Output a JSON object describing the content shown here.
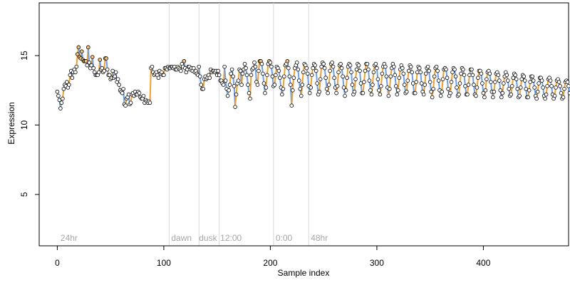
{
  "chart_data": {
    "type": "scatter",
    "title": "",
    "xlabel": "Sample index",
    "ylabel": "Expression",
    "xlim": [
      -17,
      480
    ],
    "ylim": [
      1.3,
      18.8
    ],
    "x_ticks": [
      0,
      100,
      200,
      300,
      400
    ],
    "y_ticks": [
      5,
      10,
      15
    ],
    "grid": false,
    "legend": "none",
    "colors": {
      "point_fill": "#ffffff",
      "point_fill_high": "#f3c27b",
      "point_stroke": "#000000",
      "trace_gray": "#a6a6a6",
      "trace_up": "#f0a030",
      "trace_down": "#6f9fe6",
      "divider": "#d9d9d9",
      "phase_label": "#a6a6a6"
    },
    "dividers": [
      105,
      133,
      152,
      203,
      236
    ],
    "phase_labels": [
      {
        "text": "24hr",
        "x": 3
      },
      {
        "text": "dawn",
        "x": 107
      },
      {
        "text": "dusk",
        "x": 133
      },
      {
        "text": "12:00",
        "x": 153
      },
      {
        "text": "0:00",
        "x": 205
      },
      {
        "text": "48hr",
        "x": 238
      }
    ],
    "series": [
      {
        "values": [
          12.4,
          12.1,
          11.8,
          11.2,
          11.6,
          11.9,
          12.6,
          12.9,
          12.8,
          13.1,
          12.7,
          12.9,
          13.6,
          13.9,
          13.4,
          13.8,
          14.0,
          13.8,
          14.2,
          15.1,
          15.6,
          14.9,
          14.8,
          15.3,
          14.7,
          14.6,
          14.6,
          14.6,
          14.3,
          15.6,
          14.5,
          14.1,
          14.3,
          14.9,
          14.1,
          13.8,
          13.6,
          13.6,
          13.6,
          13.8,
          14.7,
          14.0,
          14.1,
          13.8,
          13.9,
          14.8,
          14.8,
          14.0,
          13.6,
          13.6,
          13.3,
          13.4,
          13.9,
          13.4,
          13.5,
          13.8,
          13.1,
          13.3,
          12.9,
          12.5,
          12.4,
          12.3,
          12.6,
          11.5,
          11.4,
          11.9,
          12.0,
          12.2,
          11.5,
          11.6,
          12.2,
          12.3,
          12.1,
          12.4,
          12.2,
          12.2,
          12.4,
          12.3,
          12.0,
          11.9,
          11.9,
          12.1,
          11.6,
          11.8,
          11.7,
          11.6,
          11.7,
          11.6,
          14.1,
          14.2,
          13.8,
          13.6,
          13.7,
          13.8,
          13.6,
          13.4,
          13.9,
          13.7,
          13.8,
          13.6,
          13.6,
          14.1,
          14.1,
          14.0,
          14.2,
          14.1,
          14.1,
          14.2,
          14.2,
          14.1,
          14.2,
          14.0,
          14.0,
          14.2,
          14.1,
          14.0,
          13.9,
          14.4,
          14.2,
          14.6,
          14.1,
          13.8,
          14.0,
          14.2,
          14.2,
          14.0,
          14.1,
          13.9,
          14.1,
          13.8,
          13.9,
          13.7,
          13.6,
          14.2,
          13.5,
          12.9,
          12.6,
          12.6,
          13.3,
          13.5,
          13.3,
          13.4,
          13.6,
          13.4,
          14.0,
          13.8,
          13.9,
          13.9,
          13.8,
          13.9,
          13.6,
          13.9,
          13.6,
          13.2,
          13.2,
          13.0,
          12.9,
          14.2,
          13.2,
          12.6,
          12.1,
          12.5,
          12.9,
          13.7,
          14.0,
          13.5,
          12.8,
          11.3,
          12.2,
          13.0,
          13.2,
          14.0,
          13.9,
          12.9,
          13.7,
          14.0,
          14.4,
          14.1,
          13.6,
          12.9,
          12.3,
          11.9,
          13.6,
          14.0,
          14.1,
          14.5,
          14.2,
          13.1,
          12.9,
          13.9,
          14.6,
          14.6,
          14.4,
          13.7,
          13.0,
          12.3,
          12.7,
          13.6,
          14.4,
          14.6,
          14.5,
          14.2,
          13.5,
          12.8,
          12.9,
          13.6,
          14.2,
          14.1,
          13.9,
          13.4,
          12.7,
          12.2,
          12.6,
          13.5,
          14.3,
          14.4,
          14.6,
          14.1,
          13.5,
          12.9,
          11.4,
          12.5,
          13.4,
          14.1,
          14.3,
          14.5,
          14.0,
          13.2,
          12.6,
          12.1,
          12.9,
          13.8,
          14.4,
          14.3,
          14.1,
          13.7,
          12.8,
          12.3,
          12.7,
          13.6,
          14.1,
          14.4,
          14.3,
          13.9,
          13.0,
          12.2,
          12.4,
          13.3,
          14.2,
          14.5,
          14.4,
          14.1,
          13.4,
          12.6,
          12.3,
          12.9,
          13.9,
          14.4,
          14.5,
          14.2,
          13.4,
          12.7,
          12.3,
          12.8,
          13.8,
          14.3,
          14.4,
          14.1,
          13.5,
          12.7,
          12.1,
          12.5,
          13.4,
          14.2,
          14.4,
          14.3,
          13.8,
          12.9,
          12.2,
          12.4,
          13.3,
          14.0,
          14.4,
          14.3,
          13.9,
          13.0,
          12.3,
          12.3,
          13.1,
          13.9,
          14.4,
          14.4,
          14.0,
          13.2,
          12.5,
          12.2,
          12.9,
          13.8,
          14.3,
          14.4,
          14.1,
          13.3,
          12.5,
          12.2,
          12.8,
          13.7,
          14.2,
          14.4,
          14.2,
          13.5,
          12.7,
          12.1,
          12.6,
          13.5,
          14.1,
          14.4,
          14.2,
          13.6,
          12.8,
          12.2,
          12.5,
          13.4,
          14.0,
          14.3,
          14.1,
          13.7,
          12.9,
          12.3,
          12.4,
          13.2,
          13.9,
          14.3,
          14.2,
          13.8,
          13.0,
          12.3,
          12.3,
          13.1,
          13.8,
          14.2,
          14.1,
          13.8,
          13.0,
          12.4,
          12.2,
          12.9,
          13.7,
          14.1,
          14.2,
          13.9,
          13.1,
          12.4,
          12.0,
          12.6,
          13.5,
          14.1,
          14.2,
          13.9,
          13.2,
          12.5,
          12.1,
          12.4,
          13.3,
          14.0,
          14.1,
          14.0,
          13.4,
          12.6,
          12.1,
          12.3,
          13.1,
          13.8,
          14.1,
          14.0,
          13.5,
          12.7,
          12.1,
          12.2,
          13.0,
          13.7,
          14.1,
          14.0,
          13.6,
          12.8,
          12.2,
          12.2,
          12.9,
          13.6,
          14.0,
          14.0,
          13.6,
          12.9,
          12.2,
          12.1,
          12.7,
          13.4,
          13.9,
          13.9,
          13.7,
          13.0,
          12.3,
          12.0,
          12.5,
          13.3,
          13.8,
          13.9,
          13.7,
          13.1,
          12.4,
          12.0,
          12.4,
          13.1,
          13.7,
          13.8,
          13.6,
          13.2,
          12.5,
          12.0,
          12.3,
          13.0,
          13.5,
          13.8,
          13.6,
          13.2,
          12.6,
          12.1,
          12.2,
          12.8,
          13.4,
          13.7,
          13.6,
          13.3,
          12.6,
          12.0,
          12.1,
          12.7,
          13.3,
          13.6,
          13.5,
          13.2,
          12.6,
          12.0,
          12.0,
          12.5,
          13.1,
          13.5,
          13.5,
          13.2,
          12.7,
          12.1,
          11.9,
          12.4,
          13.0,
          13.4,
          13.4,
          13.2,
          12.7,
          12.1,
          11.9,
          12.2,
          12.8,
          13.3,
          13.4,
          13.2,
          12.8,
          12.2,
          11.9,
          12.1,
          12.7,
          13.2,
          13.3,
          13.1,
          12.8,
          12.3,
          11.9,
          12.0,
          12.6,
          13.1,
          13.2,
          13.1,
          12.8,
          12.3
        ]
      }
    ]
  }
}
